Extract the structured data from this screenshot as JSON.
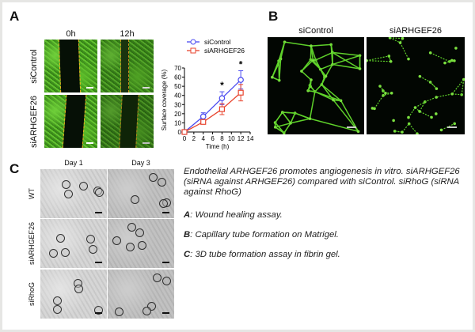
{
  "panel_a": {
    "label": "A",
    "columns": [
      "0h",
      "12h"
    ],
    "rows": [
      "siControl",
      "siARHGEF26"
    ]
  },
  "chart_data": {
    "type": "line",
    "xlabel": "Time (h)",
    "ylabel": "Surface coverage (%)",
    "xlim": [
      0,
      14
    ],
    "ylim": [
      0,
      70
    ],
    "xticks": [
      0,
      2,
      4,
      6,
      8,
      10,
      12,
      14
    ],
    "yticks": [
      0,
      10,
      20,
      30,
      40,
      50,
      60,
      70
    ],
    "legend_position": "top",
    "series": [
      {
        "name": "siControl",
        "color": "#4a4af0",
        "marker": "circle",
        "x": [
          0,
          4,
          8,
          12
        ],
        "y": [
          0,
          17,
          37,
          57
        ],
        "error": [
          0,
          4,
          7,
          10
        ]
      },
      {
        "name": "siARHGEF26",
        "color": "#e8452f",
        "marker": "square",
        "x": [
          0,
          4,
          8,
          12
        ],
        "y": [
          0,
          11,
          25,
          43
        ],
        "error": [
          0,
          2,
          6,
          9
        ]
      }
    ],
    "annotations": [
      {
        "x": 8,
        "text": "*"
      },
      {
        "x": 12,
        "text": "*"
      }
    ]
  },
  "panel_b": {
    "label": "B",
    "columns": [
      "siControl",
      "siARHGEF26"
    ]
  },
  "panel_c": {
    "label": "C",
    "columns": [
      "Day 1",
      "Day 3"
    ],
    "rows": [
      "WT",
      "siARHGEF26",
      "siRhoG"
    ]
  },
  "caption": {
    "intro": "Endothelial ARHGEF26 promotes angiogenesis in vitro. siARHGEF26 (siRNA against ARHGEF26) compared with siControl. siRhoG (siRNA against RhoG)",
    "items": [
      {
        "key": "A",
        "text": ": Wound healing assay."
      },
      {
        "key": "B",
        "text": ": Capillary tube formation on Matrigel."
      },
      {
        "key": "C",
        "text": ": 3D tube formation assay in fibrin gel."
      }
    ]
  }
}
